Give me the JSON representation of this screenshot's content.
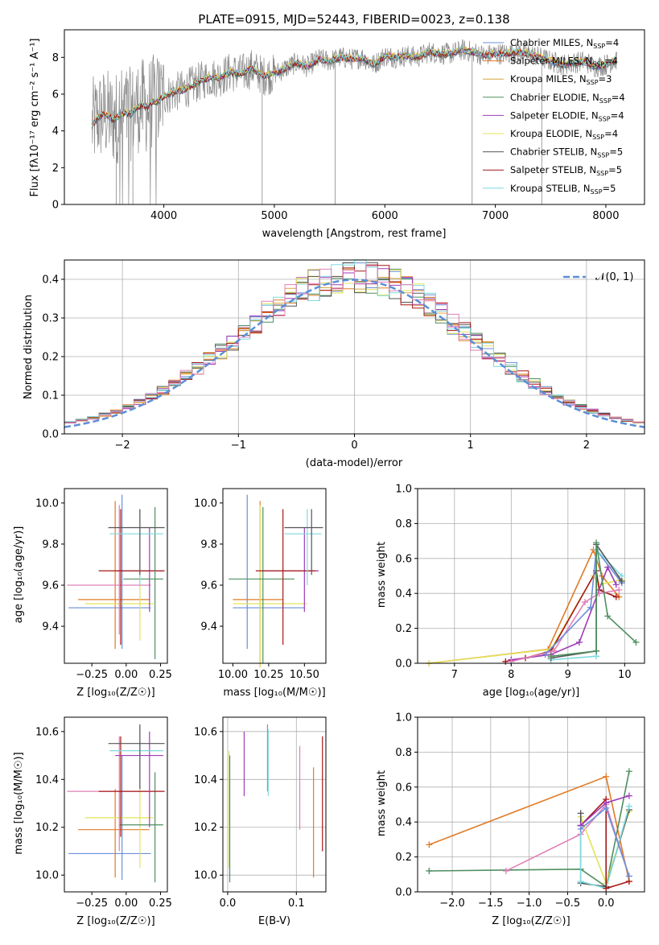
{
  "colors": {
    "c1": "#6a8fd6",
    "c2": "#e07b26",
    "c3": "#d9a33a",
    "c4": "#4f8f5f",
    "c5": "#a03cb8",
    "c6": "#e3e35a",
    "c7": "#555555",
    "c8": "#a51717",
    "c9": "#7fd9e0",
    "c10": "#e080b8",
    "c11": "#888888",
    "normal": "#5b8fd6"
  },
  "chart_data": [
    {
      "type": "line",
      "title": "PLATE=0915, MJD=52443, FIBERID=0023, z=0.138",
      "xlabel": "wavelength [Angstrom, rest frame]",
      "ylabel": "Flux [fλ10⁻¹⁷ erg cm⁻² s⁻¹ A⁻¹]",
      "xlim": [
        3100,
        8350
      ],
      "ylim": [
        0,
        9.5
      ],
      "xticks": [
        "4000",
        "5000",
        "6000",
        "7000",
        "8000"
      ],
      "yticks": [
        "0",
        "2",
        "4",
        "6",
        "8"
      ],
      "legend": "upper-right",
      "spectrum_x": [
        3350,
        3400,
        3450,
        3500,
        3550,
        3600,
        3650,
        3700,
        3750,
        3800,
        3850,
        3900,
        3950,
        4000,
        4100,
        4200,
        4300,
        4400,
        4500,
        4600,
        4700,
        4800,
        4900,
        5000,
        5100,
        5200,
        5300,
        5400,
        5500,
        5600,
        5700,
        5800,
        5900,
        6000,
        6100,
        6200,
        6300,
        6400,
        6500,
        6600,
        6700,
        6800,
        6900,
        7000,
        7100,
        7200,
        7300,
        7400,
        7500,
        7600,
        7700,
        7800,
        7900,
        8000,
        8100
      ],
      "model_y": [
        4.3,
        4.7,
        4.9,
        4.8,
        4.6,
        4.9,
        5.0,
        4.9,
        5.3,
        5.4,
        5.3,
        5.6,
        5.6,
        5.9,
        6.1,
        6.3,
        6.6,
        6.9,
        6.9,
        7.2,
        7.1,
        7.4,
        7.0,
        7.1,
        7.4,
        7.7,
        7.5,
        7.9,
        7.8,
        8.0,
        7.9,
        8.0,
        7.6,
        8.1,
        8.0,
        8.1,
        8.0,
        8.3,
        8.2,
        8.2,
        8.4,
        8.3,
        8.1,
        8.2,
        8.2,
        8.3,
        8.2,
        8.0,
        7.8,
        7.6,
        7.7,
        7.8,
        7.5,
        7.6,
        7.9
      ],
      "series": [
        {
          "name": "Chabrier MILES, N_SSP=4",
          "color_key": "c1"
        },
        {
          "name": "Salpeter MILES, N_SSP=4",
          "color_key": "c2"
        },
        {
          "name": "Kroupa MILES, N_SSP=3",
          "color_key": "c3"
        },
        {
          "name": "Chabrier ELODIE, N_SSP=4",
          "color_key": "c4"
        },
        {
          "name": "Salpeter ELODIE, N_SSP=4",
          "color_key": "c5"
        },
        {
          "name": "Kroupa ELODIE, N_SSP=4",
          "color_key": "c6"
        },
        {
          "name": "Chabrier STELIB, N_SSP=5",
          "color_key": "c7"
        },
        {
          "name": "Salpeter STELIB, N_SSP=5",
          "color_key": "c8"
        },
        {
          "name": "Kroupa STELIB, N_SSP=5",
          "color_key": "c9"
        }
      ],
      "legend_rows": [
        {
          "pre": "Chabrier MILES, N",
          "sub": "SSP",
          "post": "=4"
        },
        {
          "pre": "Salpeter MILES, N",
          "sub": "SSP",
          "post": "=4"
        },
        {
          "pre": "Kroupa MILES, N",
          "sub": "SSP",
          "post": "=3"
        },
        {
          "pre": "Chabrier ELODIE, N",
          "sub": "SSP",
          "post": "=4"
        },
        {
          "pre": "Salpeter ELODIE, N",
          "sub": "SSP",
          "post": "=4"
        },
        {
          "pre": "Kroupa ELODIE, N",
          "sub": "SSP",
          "post": "=4"
        },
        {
          "pre": "Chabrier STELIB, N",
          "sub": "SSP",
          "post": "=5"
        },
        {
          "pre": "Salpeter STELIB, N",
          "sub": "SSP",
          "post": "=5"
        },
        {
          "pre": "Kroupa STELIB, N",
          "sub": "SSP",
          "post": "=5"
        }
      ]
    },
    {
      "type": "bar",
      "xlabel": "(data-model)/error",
      "ylabel": "Normed distribution",
      "xlim": [
        -2.5,
        2.5
      ],
      "ylim": [
        0,
        0.45
      ],
      "xticks": [
        "−2",
        "−1",
        "0",
        "1",
        "2"
      ],
      "yticks": [
        "0.0",
        "0.1",
        "0.2",
        "0.3",
        "0.4"
      ],
      "legend": "upper-right",
      "normal_label": "𝒩(0, 1)",
      "bin_width": 0.1,
      "grid": true
    },
    {
      "type": "scatter",
      "xlabel": "Z [log₁₀(Z/Z☉)]",
      "ylabel": "age  [log₁₀(age/yr)]",
      "xlim": [
        -0.45,
        0.3
      ],
      "ylim": [
        9.22,
        10.07
      ],
      "xticks": [
        "−0.25",
        "0.00",
        "0.25"
      ],
      "yticks": [
        "9.4",
        "9.6",
        "9.8",
        "10.0"
      ],
      "points": [
        {
          "c": "c1",
          "x": -0.03,
          "xl": -0.42,
          "xh": 0.18,
          "y": 9.49,
          "yl": 9.29,
          "yh": 10.04
        },
        {
          "c": "c2",
          "x": -0.08,
          "xl": -0.35,
          "xh": 0.17,
          "y": 9.53,
          "yl": 9.29,
          "yh": 10.01
        },
        {
          "c": "c6",
          "x": 0.1,
          "xl": -0.3,
          "xh": 0.2,
          "y": 9.51,
          "yl": 9.33,
          "yh": 9.85
        },
        {
          "c": "c10",
          "x": -0.05,
          "xl": -0.43,
          "xh": 0.18,
          "y": 9.6,
          "yl": 9.36,
          "yh": 9.99
        },
        {
          "c": "c5",
          "x": 0.17,
          "xl": -0.08,
          "xh": 0.27,
          "y": 9.67,
          "yl": 9.47,
          "yh": 9.88
        },
        {
          "c": "c8",
          "x": -0.04,
          "xl": -0.2,
          "xh": 0.28,
          "y": 9.67,
          "yl": 9.31,
          "yh": 9.97
        },
        {
          "c": "c4",
          "x": 0.21,
          "xl": -0.02,
          "xh": 0.27,
          "y": 9.63,
          "yl": 9.24,
          "yh": 9.98
        },
        {
          "c": "c9",
          "x": 0.1,
          "xl": -0.12,
          "xh": 0.27,
          "y": 9.85,
          "yl": 9.6,
          "yh": 9.97
        },
        {
          "c": "c7",
          "x": 0.1,
          "xl": -0.13,
          "xh": 0.28,
          "y": 9.88,
          "yl": 9.65,
          "yh": 9.97
        }
      ]
    },
    {
      "type": "scatter",
      "xlabel": "mass [log₁₀(M/M☉)]",
      "ylabel": "",
      "xlim": [
        9.93,
        10.65
      ],
      "ylim": [
        9.22,
        10.07
      ],
      "xticks": [
        "10.00",
        "10.25",
        "10.50"
      ],
      "yticks": [
        "9.4",
        "9.6",
        "9.8",
        "10.0"
      ],
      "points": [
        {
          "c": "c1",
          "x": 10.1,
          "xl": 10.0,
          "xh": 10.5,
          "y": 9.49,
          "yl": 9.29,
          "yh": 10.04
        },
        {
          "c": "c2",
          "x": 10.19,
          "xl": 10.0,
          "xh": 10.35,
          "y": 9.53,
          "yl": 9.2,
          "yh": 10.01
        },
        {
          "c": "c6",
          "x": 10.19,
          "xl": 10.0,
          "xh": 10.52,
          "y": 9.51,
          "yl": 9.2,
          "yh": 9.99
        },
        {
          "c": "c4",
          "x": 10.21,
          "xl": 9.97,
          "xh": 10.43,
          "y": 9.63,
          "yl": 9.22,
          "yh": 9.98
        },
        {
          "c": "c5",
          "x": 10.5,
          "xl": 10.2,
          "xh": 10.6,
          "y": 9.67,
          "yl": 9.47,
          "yh": 9.88
        },
        {
          "c": "c8",
          "x": 10.35,
          "xl": 10.16,
          "xh": 10.58,
          "y": 9.67,
          "yl": 9.31,
          "yh": 9.97
        },
        {
          "c": "c9",
          "x": 10.52,
          "xl": 10.36,
          "xh": 10.62,
          "y": 9.85,
          "yl": 9.6,
          "yh": 9.97
        },
        {
          "c": "c7",
          "x": 10.55,
          "xl": 10.36,
          "xh": 10.63,
          "y": 9.88,
          "yl": 9.65,
          "yh": 9.97
        }
      ]
    },
    {
      "type": "line",
      "xlabel": "age  [log₁₀(age/yr)]",
      "ylabel": "mass weight",
      "xlim": [
        6.35,
        10.35
      ],
      "ylim": [
        0,
        1
      ],
      "xticks": [
        "7",
        "8",
        "9",
        "10"
      ],
      "yticks": [
        "0.0",
        "0.2",
        "0.4",
        "0.6",
        "0.8",
        "1.0"
      ],
      "grid": true,
      "series": [
        {
          "c": "c2",
          "x": [
            6.55,
            8.65,
            9.45,
            9.6,
            9.9
          ],
          "y": [
            0.0,
            0.08,
            0.65,
            0.5,
            0.38
          ]
        },
        {
          "c": "c6",
          "x": [
            6.55,
            8.7,
            9.45,
            9.55,
            9.95
          ],
          "y": [
            0.0,
            0.08,
            0.5,
            0.45,
            0.48
          ]
        },
        {
          "c": "c8",
          "x": [
            7.9,
            8.25,
            8.7,
            9.5,
            9.55,
            9.85
          ],
          "y": [
            0.01,
            0.03,
            0.07,
            0.53,
            0.42,
            0.38
          ]
        },
        {
          "c": "c5",
          "x": [
            8.0,
            8.7,
            9.2,
            9.7,
            9.85
          ],
          "y": [
            0.02,
            0.05,
            0.12,
            0.55,
            0.45
          ]
        },
        {
          "c": "c10",
          "x": [
            8.0,
            8.75,
            9.3,
            9.55,
            9.9
          ],
          "y": [
            0.01,
            0.07,
            0.35,
            0.4,
            0.42
          ]
        },
        {
          "c": "c1",
          "x": [
            8.6,
            9.4,
            9.5,
            9.95
          ],
          "y": [
            0.05,
            0.32,
            0.65,
            0.46
          ]
        },
        {
          "c": "c9",
          "x": [
            8.7,
            9.5,
            9.5,
            9.95
          ],
          "y": [
            0.02,
            0.04,
            0.65,
            0.5
          ]
        },
        {
          "c": "c7",
          "x": [
            8.7,
            9.5,
            9.5,
            9.95
          ],
          "y": [
            0.03,
            0.07,
            0.68,
            0.47
          ]
        },
        {
          "c": "c4",
          "x": [
            8.7,
            9.5,
            9.5,
            9.7,
            10.2
          ],
          "y": [
            0.04,
            0.07,
            0.69,
            0.27,
            0.12
          ]
        }
      ]
    },
    {
      "type": "scatter",
      "xlabel": "Z [log₁₀(Z/Z☉)]",
      "ylabel": "mass [log₁₀(M/M☉)]",
      "xlim": [
        -0.45,
        0.3
      ],
      "ylim": [
        9.93,
        10.66
      ],
      "xticks": [
        "−0.25",
        "0.00",
        "0.25"
      ],
      "yticks": [
        "10.0",
        "10.2",
        "10.4",
        "10.6"
      ],
      "points": [
        {
          "c": "c1",
          "x": -0.03,
          "xl": -0.42,
          "xh": 0.18,
          "y": 10.09,
          "yl": 9.98,
          "yh": 10.5
        },
        {
          "c": "c2",
          "x": -0.08,
          "xl": -0.35,
          "xh": 0.17,
          "y": 10.19,
          "yl": 9.99,
          "yh": 10.36
        },
        {
          "c": "c6",
          "x": 0.1,
          "xl": -0.3,
          "xh": 0.2,
          "y": 10.24,
          "yl": 10.03,
          "yh": 10.52
        },
        {
          "c": "c4",
          "x": 0.21,
          "xl": -0.05,
          "xh": 0.27,
          "y": 10.21,
          "yl": 9.97,
          "yh": 10.43
        },
        {
          "c": "c10",
          "x": -0.05,
          "xl": -0.43,
          "xh": 0.18,
          "y": 10.35,
          "yl": 10.1,
          "yh": 10.58
        },
        {
          "c": "c8",
          "x": -0.04,
          "xl": -0.2,
          "xh": 0.28,
          "y": 10.35,
          "yl": 10.16,
          "yh": 10.58
        },
        {
          "c": "c5",
          "x": 0.17,
          "xl": -0.08,
          "xh": 0.27,
          "y": 10.5,
          "yl": 10.2,
          "yh": 10.6
        },
        {
          "c": "c9",
          "x": 0.1,
          "xl": -0.12,
          "xh": 0.27,
          "y": 10.52,
          "yl": 10.36,
          "yh": 10.62
        },
        {
          "c": "c7",
          "x": 0.1,
          "xl": -0.13,
          "xh": 0.28,
          "y": 10.55,
          "yl": 10.36,
          "yh": 10.63
        }
      ]
    },
    {
      "type": "scatter",
      "xlabel": "E(B-V)",
      "ylabel": "",
      "xlim": [
        -0.007,
        0.143
      ],
      "ylim": [
        9.93,
        10.66
      ],
      "xticks": [
        "0.0",
        "0.1"
      ],
      "yticks": [
        "10.0",
        "10.2",
        "10.4",
        "10.6"
      ],
      "grid": true,
      "points": [
        {
          "c": "c6",
          "x": 0.002,
          "yl": 10.03,
          "yh": 10.52
        },
        {
          "c": "c4",
          "x": 0.003,
          "yl": 9.97,
          "yh": 10.5
        },
        {
          "c": "c5",
          "x": 0.024,
          "yl": 10.33,
          "yh": 10.6
        },
        {
          "c": "c1",
          "x": 0.058,
          "yl": 10.35,
          "yh": 10.63
        },
        {
          "c": "c9",
          "x": 0.059,
          "yl": 10.33,
          "yh": 10.61
        },
        {
          "c": "c10",
          "x": 0.105,
          "yl": 10.19,
          "yh": 10.54
        },
        {
          "c": "c2",
          "x": 0.125,
          "yl": 9.99,
          "yh": 10.45
        },
        {
          "c": "c8",
          "x": 0.138,
          "yl": 10.1,
          "yh": 10.58
        }
      ]
    },
    {
      "type": "line",
      "xlabel": "Z [log₁₀(Z/Z☉)]",
      "ylabel": "mass weight",
      "xlim": [
        -2.45,
        0.5
      ],
      "ylim": [
        0,
        1
      ],
      "xticks": [
        "−2.0",
        "−1.5",
        "−1.0",
        "−0.5",
        "0.0"
      ],
      "yticks": [
        "0.0",
        "0.2",
        "0.4",
        "0.6",
        "0.8",
        "1.0"
      ],
      "grid": true,
      "series": [
        {
          "c": "c2",
          "x": [
            -2.3,
            0.0,
            0.3
          ],
          "y": [
            0.27,
            0.66,
            0.06
          ]
        },
        {
          "c": "c4",
          "x": [
            -2.3,
            -0.33,
            0.0,
            0.3
          ],
          "y": [
            0.12,
            0.13,
            0.03,
            0.69
          ]
        },
        {
          "c": "c10",
          "x": [
            -1.3,
            -0.33,
            0.0,
            0.3
          ],
          "y": [
            0.12,
            0.33,
            0.5,
            0.09
          ]
        },
        {
          "c": "c6",
          "x": [
            -0.33,
            0.0,
            0.3
          ],
          "y": [
            0.43,
            0.05,
            0.46
          ]
        },
        {
          "c": "c7",
          "x": [
            -0.33,
            -0.33,
            0.0,
            0.3
          ],
          "y": [
            0.45,
            0.05,
            0.03,
            0.47
          ]
        },
        {
          "c": "c9",
          "x": [
            -0.33,
            -0.33,
            0.0,
            0.3
          ],
          "y": [
            0.38,
            0.06,
            0.02,
            0.49
          ]
        },
        {
          "c": "c8",
          "x": [
            -0.33,
            0.0,
            0.0,
            0.3
          ],
          "y": [
            0.38,
            0.53,
            0.02,
            0.06
          ]
        },
        {
          "c": "c5",
          "x": [
            -0.33,
            0.0,
            0.3
          ],
          "y": [
            0.38,
            0.51,
            0.55
          ]
        },
        {
          "c": "c1",
          "x": [
            -0.33,
            0.0,
            0.3
          ],
          "y": [
            0.36,
            0.48,
            0.09
          ]
        }
      ]
    }
  ]
}
